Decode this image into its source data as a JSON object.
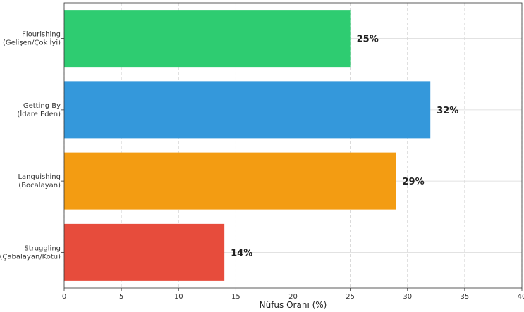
{
  "chart_data": {
    "type": "bar",
    "orientation": "horizontal",
    "title": "",
    "xlabel": "Nüfus Oranı (%)",
    "ylabel": "",
    "xlim": [
      0,
      40
    ],
    "xticks": [
      0,
      5,
      10,
      15,
      20,
      25,
      30,
      35,
      40
    ],
    "grid": "x-dashed",
    "categories": [
      [
        "Flourishing",
        "(Gelişen/Çok İyi)"
      ],
      [
        "Getting By",
        "(İdare Eden)"
      ],
      [
        "Languishing",
        "(Bocalayan)"
      ],
      [
        "Struggling",
        "(Çabalayan/Kötü)"
      ]
    ],
    "values": [
      25,
      32,
      29,
      14
    ],
    "value_labels": [
      "25%",
      "32%",
      "29%",
      "14%"
    ],
    "colors": [
      "#2ecc71",
      "#3498db",
      "#f39c12",
      "#e74c3c"
    ]
  }
}
